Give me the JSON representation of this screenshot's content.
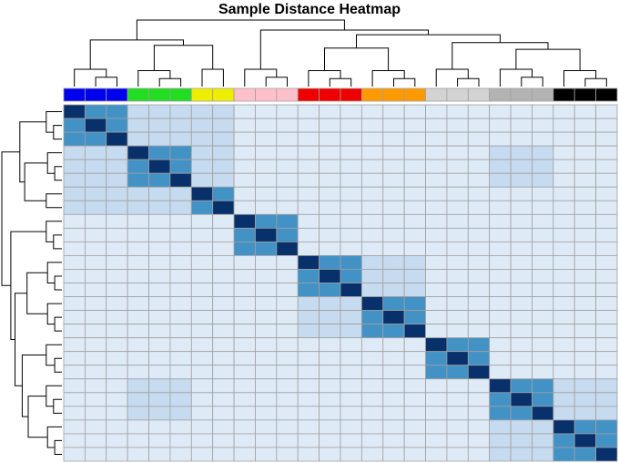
{
  "chart_data": {
    "type": "heatmap",
    "title": "Sample Distance Heatmap",
    "groups": [
      {
        "size": 3,
        "color": "#0000ee"
      },
      {
        "size": 3,
        "color": "#22dd22"
      },
      {
        "size": 2,
        "color": "#eeee00"
      },
      {
        "size": 3,
        "color": "#ffc0cb"
      },
      {
        "size": 3,
        "color": "#ee0000"
      },
      {
        "size": 3,
        "color": "#ff9900"
      },
      {
        "size": 3,
        "color": "#d3d3d3"
      },
      {
        "size": 3,
        "color": "#b3b3b3"
      },
      {
        "size": 3,
        "color": "#000000"
      }
    ],
    "block_levels": [
      [
        4,
        2,
        2,
        1,
        1,
        1,
        1,
        1,
        1
      ],
      [
        2,
        4,
        2,
        1,
        1,
        1,
        1,
        2,
        1
      ],
      [
        2,
        2,
        4,
        1,
        1,
        1,
        1,
        1,
        1
      ],
      [
        1,
        1,
        1,
        4,
        1,
        1,
        1,
        1,
        1
      ],
      [
        1,
        1,
        1,
        1,
        4,
        2,
        1,
        1,
        1
      ],
      [
        1,
        1,
        1,
        1,
        2,
        4,
        1,
        1,
        1
      ],
      [
        1,
        1,
        1,
        1,
        1,
        1,
        4,
        1,
        1
      ],
      [
        1,
        2,
        1,
        1,
        1,
        1,
        1,
        4,
        2
      ],
      [
        1,
        1,
        1,
        1,
        1,
        1,
        1,
        2,
        4
      ]
    ],
    "diagonal_level": 6,
    "within_group_level": 5,
    "color_scale": [
      "#f7fbff",
      "#deebf7",
      "#c6dbef",
      "#b0d2e8",
      "#9ecae1",
      "#4292c6",
      "#08306b"
    ],
    "legend": "none",
    "grid": true
  }
}
